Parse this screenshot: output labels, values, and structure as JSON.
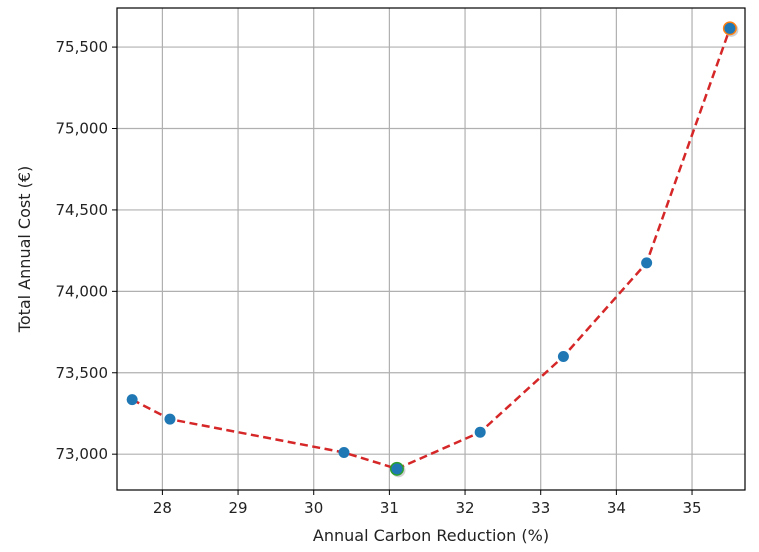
{
  "chart_data": {
    "type": "scatter",
    "title": "",
    "xlabel": "Annual Carbon Reduction (%)",
    "ylabel": "Total Annual Cost (€)",
    "xlim": [
      27.4,
      35.7
    ],
    "ylim": [
      72780,
      75740
    ],
    "x_ticks": [
      28,
      29,
      30,
      31,
      32,
      33,
      34,
      35
    ],
    "y_ticks": [
      73000,
      73500,
      74000,
      74500,
      75000,
      75500
    ],
    "x_tick_labels": [
      "28",
      "29",
      "30",
      "31",
      "32",
      "33",
      "34",
      "35"
    ],
    "y_tick_labels": [
      "73,000",
      "73,500",
      "74,000",
      "74,500",
      "75,000",
      "75,500"
    ],
    "grid": true,
    "legend": "none",
    "series": [
      {
        "style": "markers",
        "color": "#1f77b4",
        "x": [
          27.6,
          28.1,
          30.4,
          31.1,
          32.2,
          33.3,
          34.4,
          35.5
        ],
        "y": [
          73335,
          73215,
          73010,
          72910,
          73135,
          73600,
          74175,
          75615
        ]
      },
      {
        "style": "dashed-line",
        "color": "#d62728",
        "x": [
          27.6,
          28.1,
          30.4,
          31.1,
          32.2,
          33.3,
          34.4,
          35.5
        ],
        "y": [
          73335,
          73215,
          73010,
          72910,
          73135,
          73600,
          74175,
          75615
        ]
      }
    ],
    "highlights": [
      {
        "label_role": "min-cost",
        "x": 31.1,
        "y": 72910,
        "color": "#2ca02c"
      },
      {
        "label_role": "max-reduction",
        "x": 35.5,
        "y": 75615,
        "color": "#ff7f0e"
      }
    ]
  }
}
